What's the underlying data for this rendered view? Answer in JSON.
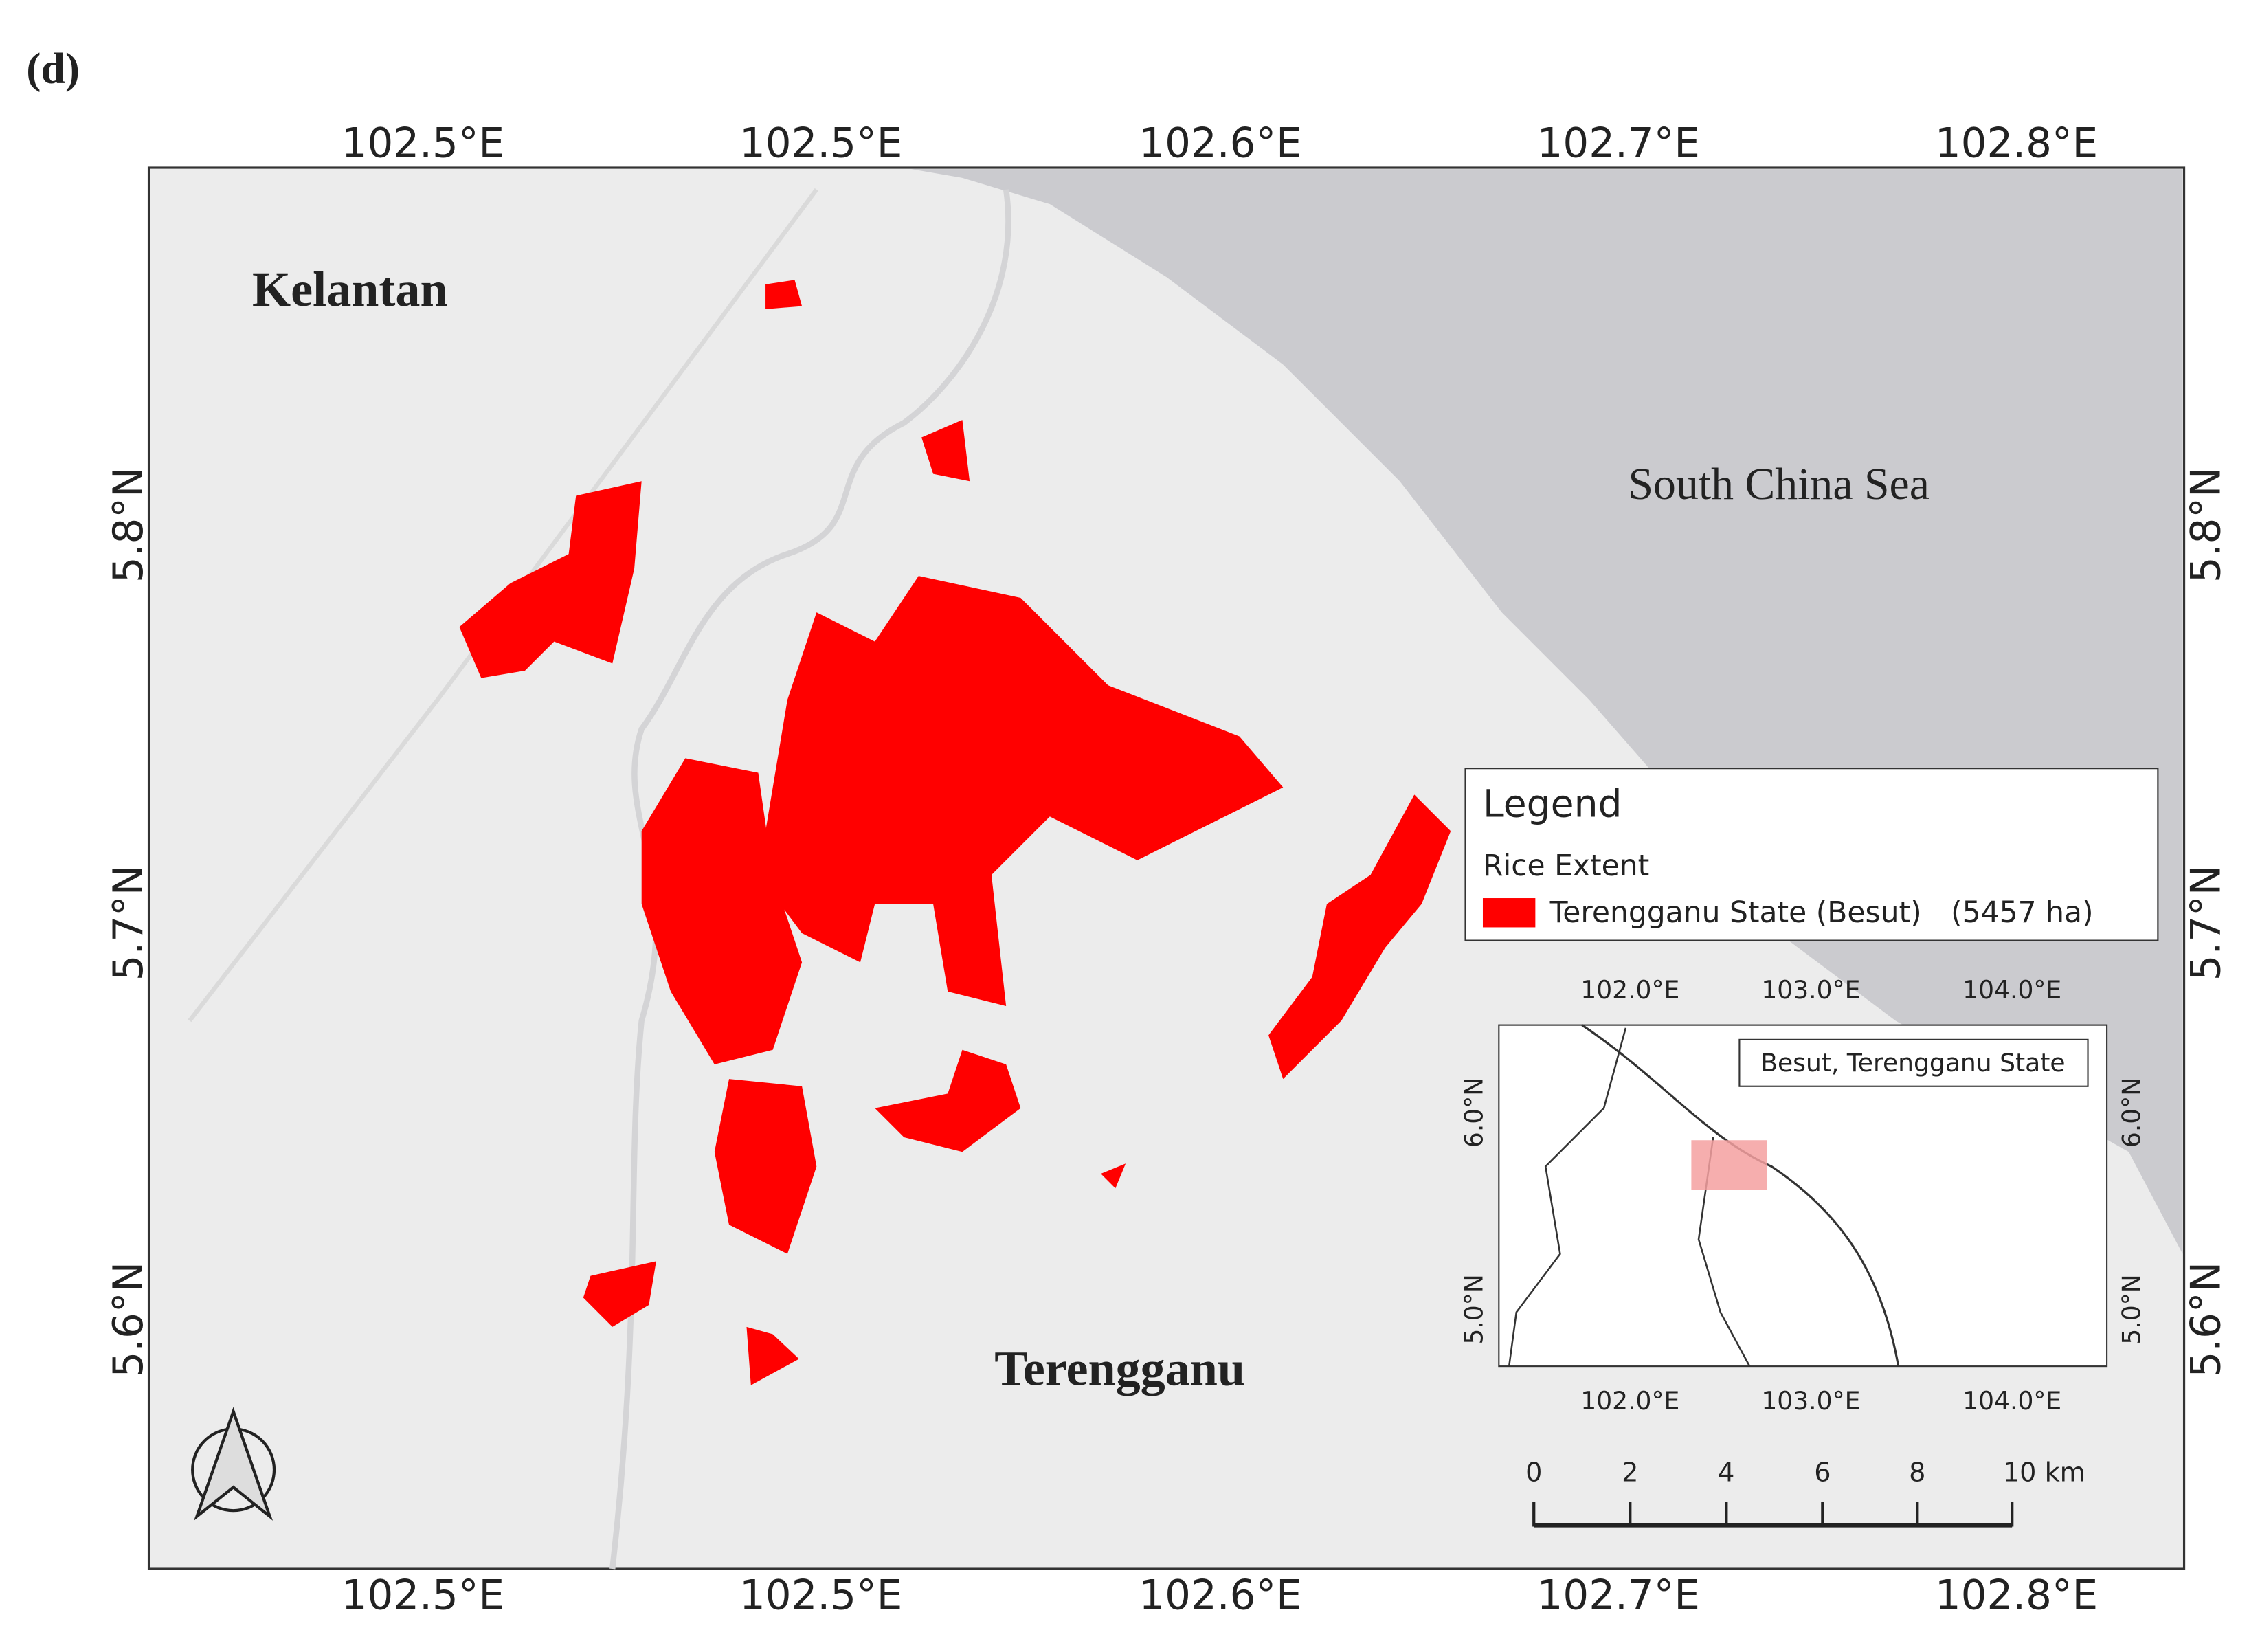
{
  "panel_label": "(d)",
  "map": {
    "top_x_labels": [
      "102.5°E",
      "102.5°E",
      "102.6°E",
      "102.7°E",
      "102.8°E"
    ],
    "bottom_x_labels": [
      "102.5°E",
      "102.5°E",
      "102.6°E",
      "102.7°E",
      "102.8°E"
    ],
    "left_y_labels": [
      "5.8°N",
      "5.7°N",
      "5.6°N"
    ],
    "right_y_labels": [
      "5.8°N",
      "5.7°N",
      "5.6°N"
    ],
    "places": [
      "Kelantan",
      "South China Sea",
      "Terengganu"
    ]
  },
  "legend": {
    "title": "Legend",
    "subtitle": "Rice Extent",
    "entry": "Terengganu State (Besut)",
    "area": "(5457 ha)"
  },
  "inset": {
    "top_x_labels": [
      "102.0°E",
      "103.0°E",
      "104.0°E"
    ],
    "bottom_x_labels": [
      "102.0°E",
      "103.0°E",
      "104.0°E"
    ],
    "left_y_labels": [
      "6.0°N",
      "5.0°N"
    ],
    "right_y_labels": [
      "6.0°N",
      "5.0°N"
    ],
    "box_label": "Besut, Terengganu State"
  },
  "scale_bar": {
    "labels": [
      "0",
      "2",
      "4",
      "6",
      "8",
      "10 km"
    ]
  }
}
